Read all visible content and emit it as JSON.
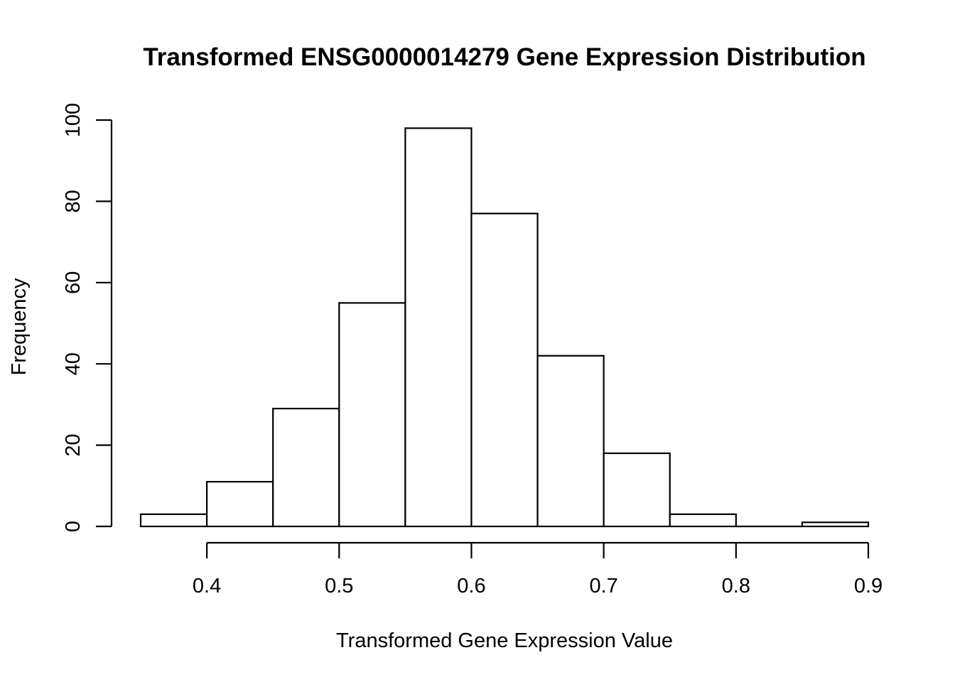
{
  "chart_data": {
    "type": "bar",
    "title": "Transformed ENSG0000014279 Gene Expression Distribution",
    "xlabel": "Transformed Gene Expression Value",
    "ylabel": "Frequency",
    "bins": [
      {
        "start": 0.35,
        "end": 0.4,
        "count": 3
      },
      {
        "start": 0.4,
        "end": 0.45,
        "count": 11
      },
      {
        "start": 0.45,
        "end": 0.5,
        "count": 29
      },
      {
        "start": 0.5,
        "end": 0.55,
        "count": 55
      },
      {
        "start": 0.55,
        "end": 0.6,
        "count": 98
      },
      {
        "start": 0.6,
        "end": 0.65,
        "count": 77
      },
      {
        "start": 0.65,
        "end": 0.7,
        "count": 42
      },
      {
        "start": 0.7,
        "end": 0.75,
        "count": 18
      },
      {
        "start": 0.75,
        "end": 0.8,
        "count": 3
      },
      {
        "start": 0.8,
        "end": 0.85,
        "count": 0
      },
      {
        "start": 0.85,
        "end": 0.9,
        "count": 1
      }
    ],
    "xticks": [
      {
        "value": 0.4,
        "label": "0.4"
      },
      {
        "value": 0.5,
        "label": "0.5"
      },
      {
        "value": 0.6,
        "label": "0.6"
      },
      {
        "value": 0.7,
        "label": "0.7"
      },
      {
        "value": 0.8,
        "label": "0.8"
      },
      {
        "value": 0.9,
        "label": "0.9"
      }
    ],
    "yticks": [
      {
        "value": 0,
        "label": "0"
      },
      {
        "value": 20,
        "label": "20"
      },
      {
        "value": 40,
        "label": "40"
      },
      {
        "value": 60,
        "label": "60"
      },
      {
        "value": 80,
        "label": "80"
      },
      {
        "value": 100,
        "label": "100"
      }
    ],
    "xlim": [
      0.35,
      0.9
    ],
    "ylim": [
      0,
      100
    ],
    "grid": false,
    "legend": "none",
    "colors": {
      "bar_fill": "#ffffff",
      "bar_stroke": "#000000",
      "text": "#000000"
    }
  }
}
